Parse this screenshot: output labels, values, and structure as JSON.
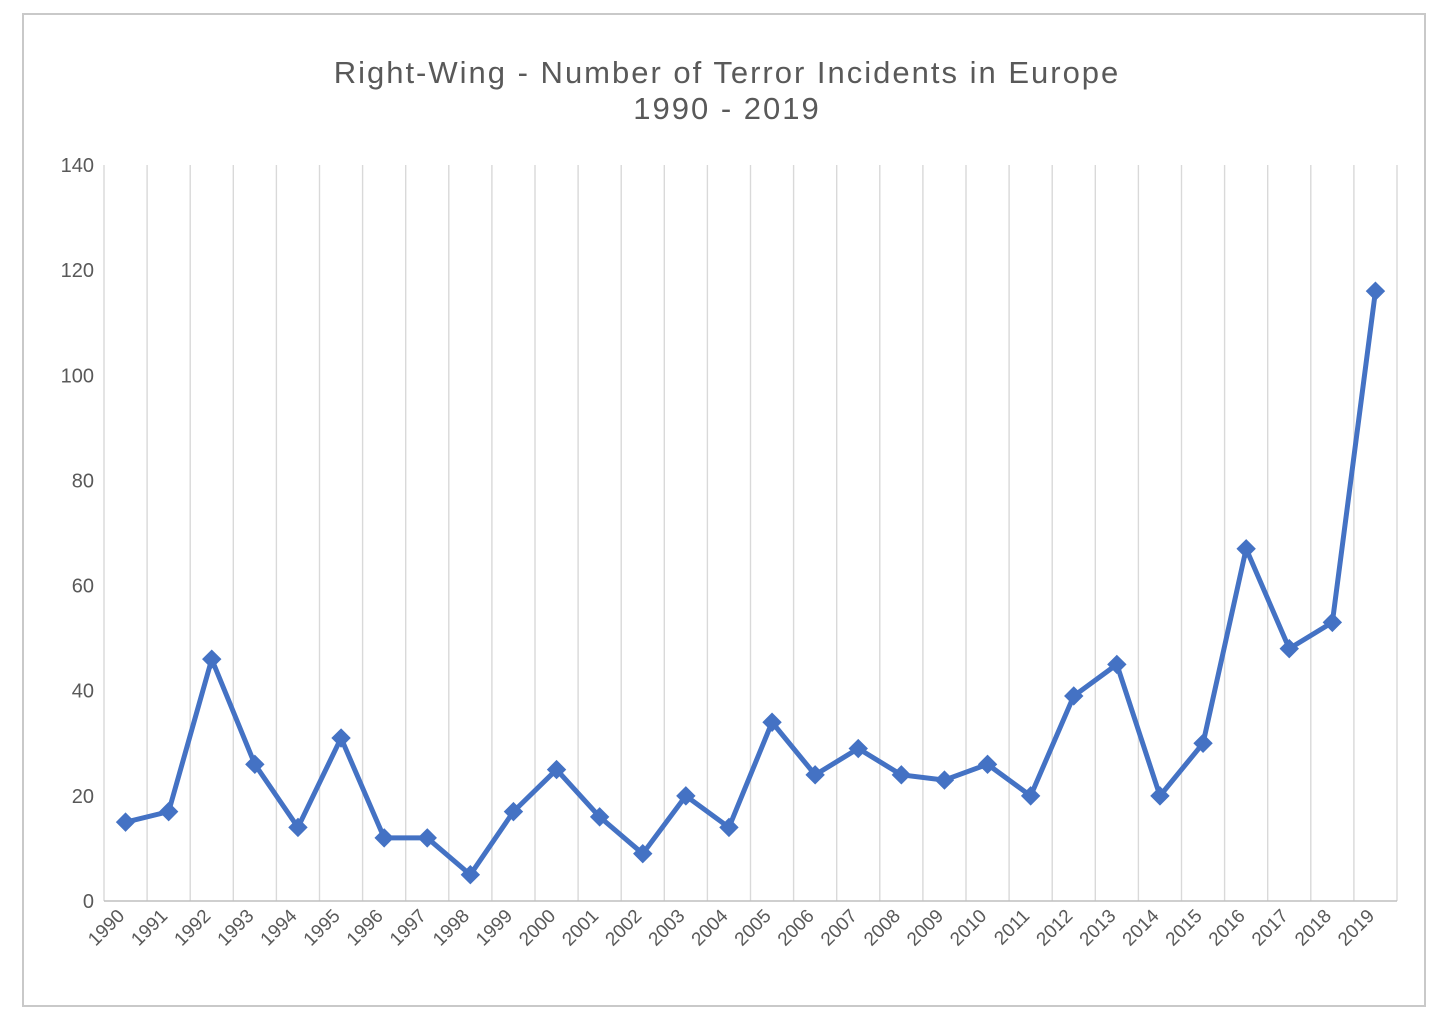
{
  "chart_data": {
    "type": "line",
    "title": "Right-Wing - Number of Terror Incidents in Europe",
    "subtitle": "1990 - 2019",
    "xlabel": "",
    "ylabel": "",
    "ylim": [
      0,
      140
    ],
    "yticks": [
      "0",
      "20",
      "40",
      "60",
      "80",
      "100",
      "120",
      "140"
    ],
    "grid": "vertical",
    "line_color": "#4472C4",
    "marker": "diamond",
    "categories": [
      "1990",
      "1991",
      "1992",
      "1993",
      "1994",
      "1995",
      "1996",
      "1997",
      "1998",
      "1999",
      "2000",
      "2001",
      "2002",
      "2003",
      "2004",
      "2005",
      "2006",
      "2007",
      "2008",
      "2009",
      "2010",
      "2011",
      "2012",
      "2013",
      "2014",
      "2015",
      "2016",
      "2017",
      "2018",
      "2019"
    ],
    "series": [
      {
        "values": [
          15,
          17,
          46,
          26,
          14,
          31,
          12,
          12,
          5,
          17,
          25,
          16,
          9,
          20,
          14,
          34,
          24,
          29,
          24,
          23,
          26,
          20,
          39,
          45,
          20,
          30,
          67,
          48,
          53,
          116
        ]
      }
    ]
  }
}
